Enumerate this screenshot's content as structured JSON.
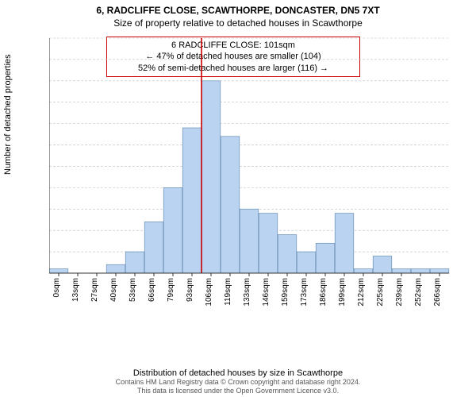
{
  "title_main": "6, RADCLIFFE CLOSE, SCAWTHORPE, DONCASTER, DN5 7XT",
  "title_sub": "Size of property relative to detached houses in Scawthorpe",
  "annotation": {
    "line1": "6 RADCLIFFE CLOSE: 101sqm",
    "line2": "← 47% of detached houses are smaller (104)",
    "line3": "52% of semi-detached houses are larger (116) →"
  },
  "ylabel": "Number of detached properties",
  "xlabel": "Distribution of detached houses by size in Scawthorpe",
  "footer1": "Contains HM Land Registry data © Crown copyright and database right 2024.",
  "footer2": "This data is licensed under the Open Government Licence v3.0.",
  "chart": {
    "type": "histogram",
    "ylim": [
      0,
      55
    ],
    "ytick_step": 5,
    "yticks": [
      0,
      5,
      10,
      15,
      20,
      25,
      30,
      35,
      40,
      45,
      50,
      55
    ],
    "categories": [
      "0sqm",
      "13sqm",
      "27sqm",
      "40sqm",
      "53sqm",
      "66sqm",
      "79sqm",
      "93sqm",
      "106sqm",
      "119sqm",
      "133sqm",
      "146sqm",
      "159sqm",
      "173sqm",
      "186sqm",
      "199sqm",
      "212sqm",
      "225sqm",
      "239sqm",
      "252sqm",
      "266sqm"
    ],
    "values": [
      1,
      0,
      0,
      2,
      5,
      12,
      20,
      34,
      45,
      32,
      15,
      14,
      9,
      5,
      7,
      14,
      1,
      4,
      1,
      1,
      1
    ],
    "bar_color": "#b9d3f0",
    "bar_stroke": "#6a8fb5",
    "marker_line_x_category": "106sqm",
    "marker_line_color": "#cc0000",
    "background": "#ffffff",
    "grid_color": "#bfbfbf",
    "grid_dash": "3,2",
    "axis_color": "#333333",
    "bar_width_ratio": 0.98
  }
}
